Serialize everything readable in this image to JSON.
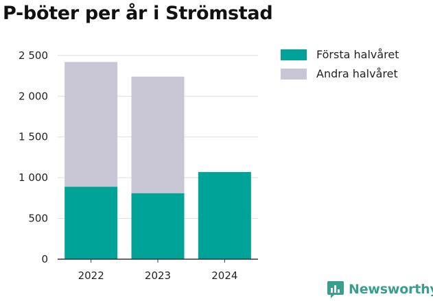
{
  "chart_data": {
    "type": "bar",
    "stacked": true,
    "title": "P-böter per år i Strömstad",
    "xlabel": "",
    "ylabel": "",
    "categories": [
      "2022",
      "2023",
      "2024"
    ],
    "series": [
      {
        "name": "Första halvåret",
        "color": "#00a398",
        "values": [
          890,
          810,
          1070
        ]
      },
      {
        "name": "Andra halvåret",
        "color": "#c8c6d4",
        "values": [
          1530,
          1430,
          0
        ]
      }
    ],
    "ylim": [
      0,
      2600
    ],
    "yticks": [
      0,
      500,
      1000,
      1500,
      2000,
      2500
    ],
    "ytick_labels": [
      "0",
      "500",
      "1 000",
      "1 500",
      "2 000",
      "2 500"
    ],
    "grid": true,
    "legend_position": "top-right"
  },
  "brand": {
    "name": "Newsworthy",
    "icon": "bar-chart-logo-icon",
    "color": "#3a9e8c"
  }
}
